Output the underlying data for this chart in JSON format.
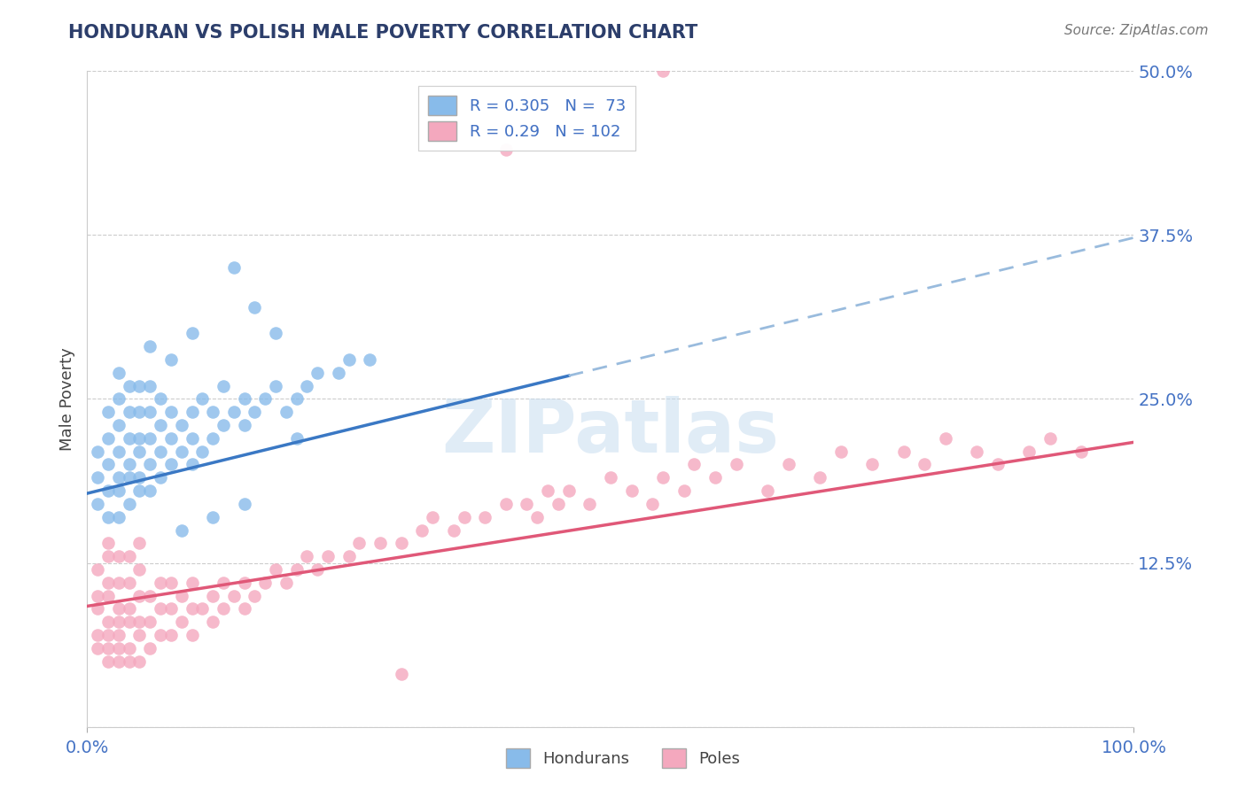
{
  "title": "HONDURAN VS POLISH MALE POVERTY CORRELATION CHART",
  "source": "Source: ZipAtlas.com",
  "ylabel": "Male Poverty",
  "xlim": [
    0,
    1.0
  ],
  "ylim": [
    0,
    0.5
  ],
  "yticks": [
    0.0,
    0.125,
    0.25,
    0.375,
    0.5
  ],
  "ytick_labels": [
    "",
    "12.5%",
    "25.0%",
    "37.5%",
    "50.0%"
  ],
  "xticks": [
    0.0,
    1.0
  ],
  "xtick_labels": [
    "0.0%",
    "100.0%"
  ],
  "honduran_color": "#88BBEA",
  "polish_color": "#F4A8BE",
  "honduran_line_color": "#3A78C4",
  "honduran_dash_color": "#99BBDD",
  "polish_line_color": "#E05878",
  "R_honduran": 0.305,
  "N_honduran": 73,
  "R_polish": 0.29,
  "N_polish": 102,
  "legend_label_honduran": "Hondurans",
  "legend_label_polish": "Poles",
  "background_color": "#ffffff",
  "grid_color": "#cccccc",
  "title_color": "#2C3E6B",
  "axis_label_color": "#444444",
  "tick_label_color": "#4472C4",
  "watermark_text": "ZIPatlas",
  "watermark_color": "#c8ddf0",
  "honduran_line_x_solid_end": 0.46,
  "honduran_line_x_start": 0.0,
  "honduran_line_y_start": 0.178,
  "honduran_line_slope": 0.195,
  "polish_line_x_start": 0.0,
  "polish_line_y_start": 0.092,
  "polish_line_slope": 0.125,
  "honduran_scatter_x": [
    0.01,
    0.01,
    0.01,
    0.02,
    0.02,
    0.02,
    0.02,
    0.02,
    0.03,
    0.03,
    0.03,
    0.03,
    0.03,
    0.03,
    0.03,
    0.04,
    0.04,
    0.04,
    0.04,
    0.04,
    0.04,
    0.05,
    0.05,
    0.05,
    0.05,
    0.05,
    0.05,
    0.06,
    0.06,
    0.06,
    0.06,
    0.06,
    0.07,
    0.07,
    0.07,
    0.07,
    0.08,
    0.08,
    0.08,
    0.09,
    0.09,
    0.1,
    0.1,
    0.1,
    0.11,
    0.11,
    0.12,
    0.12,
    0.13,
    0.13,
    0.14,
    0.15,
    0.15,
    0.16,
    0.17,
    0.18,
    0.19,
    0.2,
    0.21,
    0.22,
    0.24,
    0.25,
    0.27,
    0.14,
    0.16,
    0.18,
    0.1,
    0.08,
    0.06,
    0.2,
    0.12,
    0.15,
    0.09
  ],
  "honduran_scatter_y": [
    0.17,
    0.19,
    0.21,
    0.16,
    0.18,
    0.2,
    0.22,
    0.24,
    0.16,
    0.18,
    0.19,
    0.21,
    0.23,
    0.25,
    0.27,
    0.17,
    0.19,
    0.2,
    0.22,
    0.24,
    0.26,
    0.18,
    0.19,
    0.21,
    0.22,
    0.24,
    0.26,
    0.18,
    0.2,
    0.22,
    0.24,
    0.26,
    0.19,
    0.21,
    0.23,
    0.25,
    0.2,
    0.22,
    0.24,
    0.21,
    0.23,
    0.2,
    0.22,
    0.24,
    0.21,
    0.25,
    0.22,
    0.24,
    0.23,
    0.26,
    0.24,
    0.23,
    0.25,
    0.24,
    0.25,
    0.26,
    0.24,
    0.25,
    0.26,
    0.27,
    0.27,
    0.28,
    0.28,
    0.35,
    0.32,
    0.3,
    0.3,
    0.28,
    0.29,
    0.22,
    0.16,
    0.17,
    0.15
  ],
  "polish_scatter_x": [
    0.01,
    0.01,
    0.01,
    0.01,
    0.01,
    0.02,
    0.02,
    0.02,
    0.02,
    0.02,
    0.02,
    0.02,
    0.02,
    0.03,
    0.03,
    0.03,
    0.03,
    0.03,
    0.03,
    0.03,
    0.04,
    0.04,
    0.04,
    0.04,
    0.04,
    0.04,
    0.05,
    0.05,
    0.05,
    0.05,
    0.05,
    0.05,
    0.06,
    0.06,
    0.06,
    0.07,
    0.07,
    0.07,
    0.08,
    0.08,
    0.08,
    0.09,
    0.09,
    0.1,
    0.1,
    0.1,
    0.11,
    0.12,
    0.12,
    0.13,
    0.13,
    0.14,
    0.15,
    0.15,
    0.16,
    0.17,
    0.18,
    0.19,
    0.2,
    0.21,
    0.22,
    0.23,
    0.25,
    0.26,
    0.28,
    0.3,
    0.32,
    0.33,
    0.35,
    0.36,
    0.38,
    0.4,
    0.42,
    0.43,
    0.44,
    0.45,
    0.46,
    0.48,
    0.5,
    0.52,
    0.54,
    0.55,
    0.57,
    0.58,
    0.6,
    0.62,
    0.65,
    0.67,
    0.7,
    0.72,
    0.75,
    0.78,
    0.8,
    0.82,
    0.85,
    0.87,
    0.9,
    0.92,
    0.95,
    0.55,
    0.4,
    0.3
  ],
  "polish_scatter_y": [
    0.06,
    0.07,
    0.09,
    0.1,
    0.12,
    0.05,
    0.06,
    0.07,
    0.08,
    0.1,
    0.11,
    0.13,
    0.14,
    0.05,
    0.06,
    0.07,
    0.08,
    0.09,
    0.11,
    0.13,
    0.05,
    0.06,
    0.08,
    0.09,
    0.11,
    0.13,
    0.05,
    0.07,
    0.08,
    0.1,
    0.12,
    0.14,
    0.06,
    0.08,
    0.1,
    0.07,
    0.09,
    0.11,
    0.07,
    0.09,
    0.11,
    0.08,
    0.1,
    0.07,
    0.09,
    0.11,
    0.09,
    0.08,
    0.1,
    0.09,
    0.11,
    0.1,
    0.09,
    0.11,
    0.1,
    0.11,
    0.12,
    0.11,
    0.12,
    0.13,
    0.12,
    0.13,
    0.13,
    0.14,
    0.14,
    0.14,
    0.15,
    0.16,
    0.15,
    0.16,
    0.16,
    0.17,
    0.17,
    0.16,
    0.18,
    0.17,
    0.18,
    0.17,
    0.19,
    0.18,
    0.17,
    0.19,
    0.18,
    0.2,
    0.19,
    0.2,
    0.18,
    0.2,
    0.19,
    0.21,
    0.2,
    0.21,
    0.2,
    0.22,
    0.21,
    0.2,
    0.21,
    0.22,
    0.21,
    0.5,
    0.44,
    0.04
  ]
}
